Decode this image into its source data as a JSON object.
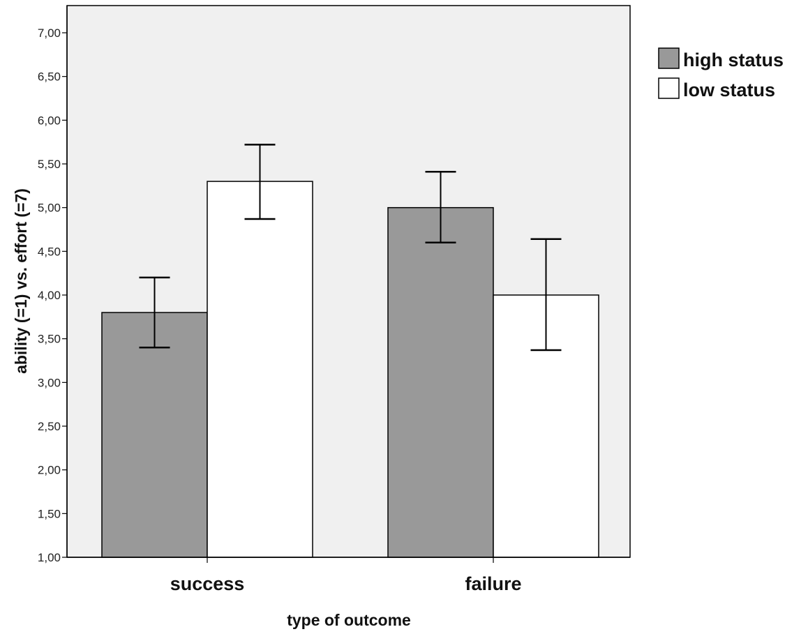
{
  "chart_data": {
    "type": "bar",
    "xlabel": "type of outcome",
    "ylabel": "ability (=1) vs. effort (=7)",
    "categories": [
      "success",
      "failure"
    ],
    "ylim": [
      1.0,
      7.3
    ],
    "yticks": [
      "1,00",
      "1,50",
      "2,00",
      "2,50",
      "3,00",
      "3,50",
      "4,00",
      "4,50",
      "5,00",
      "5,50",
      "6,00",
      "6,50",
      "7,00"
    ],
    "ytick_values": [
      1.0,
      1.5,
      2.0,
      2.5,
      3.0,
      3.5,
      4.0,
      4.5,
      5.0,
      5.5,
      6.0,
      6.5,
      7.0
    ],
    "series": [
      {
        "name": "high status",
        "color": "#999999",
        "values": [
          3.8,
          5.0
        ],
        "error_low": [
          3.4,
          4.6
        ],
        "error_high": [
          4.2,
          5.41
        ]
      },
      {
        "name": "low status",
        "color": "#ffffff",
        "values": [
          5.3,
          4.0
        ],
        "error_low": [
          4.87,
          3.37
        ],
        "error_high": [
          5.72,
          4.64
        ]
      }
    ],
    "plot_background": "#f0f0f0",
    "grid": false,
    "legend_position": "right-top"
  }
}
